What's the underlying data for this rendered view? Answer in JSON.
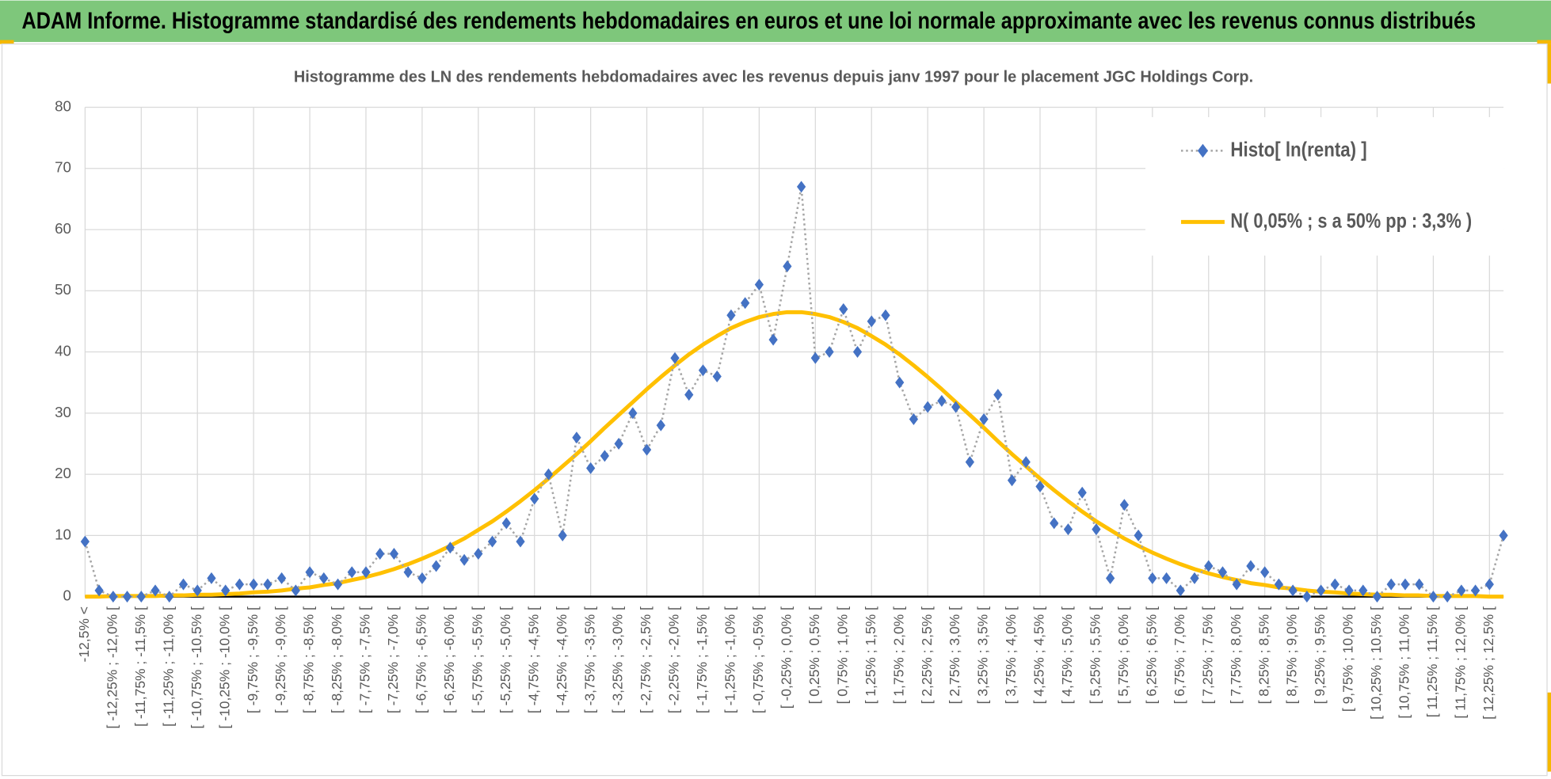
{
  "header": {
    "title": "ADAM Informe. Histogramme standardisé des rendements hebdomadaires en euros et une loi normale approximante avec les revenus connus distribués"
  },
  "chart_data": {
    "type": "line",
    "title": "Histogramme des LN des rendements hebdomadaires avec les revenus depuis janv 1997 pour le placement JGC Holdings Corp.",
    "categories": [
      "-12,5% <",
      null,
      "[ -12,25% ; -12,0% [",
      null,
      "[ -11,75% ; -11,5% [",
      null,
      "[ -11,25% ; -11,0% [",
      null,
      "[ -10,75% ; -10,5% [",
      null,
      "[ -10,25% ; -10,0% [",
      null,
      "[ -9,75% ; -9,5% [",
      null,
      "[ -9,25% ; -9,0% [",
      null,
      "[ -8,75% ; -8,5% [",
      null,
      "[ -8,25% ; -8,0% [",
      null,
      "[ -7,75% ; -7,5% [",
      null,
      "[ -7,25% ; -7,0% [",
      null,
      "[ -6,75% ; -6,5% [",
      null,
      "[ -6,25% ; -6,0% [",
      null,
      "[ -5,75% ; -5,5% [",
      null,
      "[ -5,25% ; -5,0% [",
      null,
      "[ -4,75% ; -4,5% [",
      null,
      "[ -4,25% ; -4,0% [",
      null,
      "[ -3,75% ; -3,5% [",
      null,
      "[ -3,25% ; -3,0% [",
      null,
      "[ -2,75% ; -2,5% [",
      null,
      "[ -2,25% ; -2,0% [",
      null,
      "[ -1,75% ; -1,5% [",
      null,
      "[ -1,25% ; -1,0% [",
      null,
      "[ -0,75% ; -0,5% [",
      null,
      "[ -0,25% ; 0,0% [",
      null,
      "[ 0,25% ; 0,5% [",
      null,
      "[ 0,75% ; 1,0% [",
      null,
      "[ 1,25% ; 1,5% [",
      null,
      "[ 1,75% ; 2,0% [",
      null,
      "[ 2,25% ; 2,5% [",
      null,
      "[ 2,75% ; 3,0% [",
      null,
      "[ 3,25% ; 3,5% [",
      null,
      "[ 3,75% ; 4,0% [",
      null,
      "[ 4,25% ; 4,5% [",
      null,
      "[ 4,75% ; 5,0% [",
      null,
      "[ 5,25% ; 5,5% [",
      null,
      "[ 5,75% ; 6,0% [",
      null,
      "[ 6,25% ; 6,5% [",
      null,
      "[ 6,75% ; 7,0% [",
      null,
      "[ 7,25% ; 7,5% [",
      null,
      "[ 7,75% ; 8,0% [",
      null,
      "[ 8,25% ; 8,5% [",
      null,
      "[ 8,75% ; 9,0% [",
      null,
      "[ 9,25% ; 9,5% [",
      null,
      "[ 9,75% ; 10,0% [",
      null,
      "[ 10,25% ; 10,5% [",
      null,
      "[ 10,75% ; 11,0% [",
      null,
      "[ 11,25% ; 11,5% [",
      null,
      "[ 11,75% ; 12,0% [",
      null,
      "[ 12,25% ; 12,5% [",
      null
    ],
    "series": [
      {
        "name": "Histo[ ln(renta) ]",
        "color": "#4472c4",
        "line_color": "#a5a5a5",
        "line_style": "dotted",
        "marker": "diamond",
        "values": [
          9,
          1,
          0,
          0,
          0,
          1,
          0,
          2,
          1,
          3,
          1,
          2,
          2,
          2,
          3,
          1,
          4,
          3,
          2,
          4,
          4,
          7,
          7,
          4,
          3,
          5,
          8,
          6,
          7,
          9,
          12,
          9,
          16,
          20,
          10,
          26,
          21,
          23,
          25,
          30,
          24,
          28,
          39,
          33,
          37,
          36,
          46,
          48,
          51,
          42,
          54,
          67,
          39,
          40,
          47,
          40,
          45,
          46,
          35,
          29,
          31,
          32,
          31,
          22,
          29,
          33,
          19,
          22,
          18,
          12,
          11,
          17,
          11,
          3,
          15,
          10,
          3,
          3,
          1,
          3,
          5,
          4,
          2,
          5,
          4,
          2,
          1,
          0,
          1,
          2,
          1,
          1,
          0,
          2,
          2,
          2,
          0,
          0,
          1,
          1,
          2,
          10
        ]
      },
      {
        "name": "N( 0,05% ; s a 50% pp : 3,3% )",
        "color": "#ffc000",
        "line_style": "solid",
        "values": [
          0,
          0,
          0.1,
          0.1,
          0.1,
          0.1,
          0.2,
          0.2,
          0.3,
          0.3,
          0.4,
          0.5,
          0.7,
          0.8,
          1.0,
          1.3,
          1.5,
          1.9,
          2.2,
          2.7,
          3.2,
          3.8,
          4.5,
          5.3,
          6.2,
          7.2,
          8.3,
          9.5,
          10.9,
          12.3,
          13.9,
          15.6,
          17.4,
          19.3,
          21.3,
          23.3,
          25.4,
          27.6,
          29.7,
          31.8,
          33.9,
          35.9,
          37.8,
          39.6,
          41.2,
          42.6,
          43.9,
          44.9,
          45.7,
          46.2,
          46.5,
          46.5,
          46.2,
          45.7,
          44.9,
          43.9,
          42.6,
          41.2,
          39.6,
          37.8,
          35.9,
          33.9,
          31.8,
          29.7,
          27.6,
          25.4,
          23.3,
          21.3,
          19.3,
          17.4,
          15.6,
          13.9,
          12.3,
          10.9,
          9.5,
          8.3,
          7.2,
          6.2,
          5.3,
          4.5,
          3.8,
          3.2,
          2.7,
          2.2,
          1.9,
          1.5,
          1.3,
          1.0,
          0.8,
          0.7,
          0.5,
          0.4,
          0.3,
          0.3,
          0.2,
          0.2,
          0.1,
          0.1,
          0.1,
          0.1,
          0,
          0
        ]
      }
    ],
    "ylim": [
      0,
      80
    ],
    "yticks": [
      0,
      10,
      20,
      30,
      40,
      50,
      60,
      70,
      80
    ],
    "grid": true,
    "legend": "top-right"
  }
}
